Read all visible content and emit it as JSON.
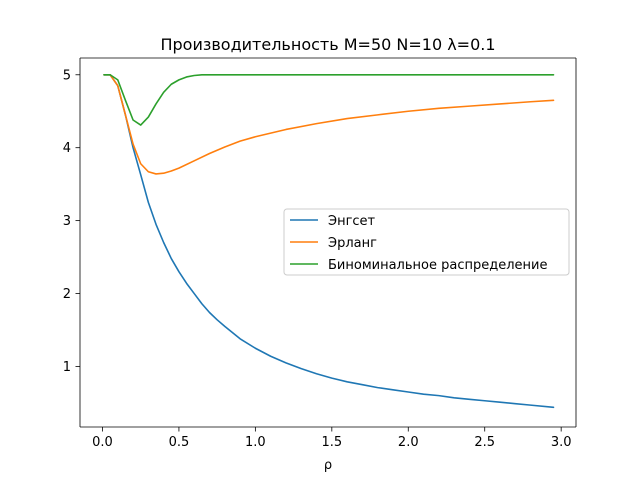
{
  "chart_data": {
    "type": "line",
    "title": "Производительность M=50 N=10 λ=0.1",
    "xlabel": "ρ",
    "ylabel": "",
    "xlim": [
      -0.147,
      3.097
    ],
    "ylim": [
      0.17,
      5.23
    ],
    "xticks": [
      0.0,
      0.5,
      1.0,
      1.5,
      2.0,
      2.5,
      3.0
    ],
    "xtick_labels": [
      "0.0",
      "0.5",
      "1.0",
      "1.5",
      "2.0",
      "2.5",
      "3.0"
    ],
    "yticks": [
      1,
      2,
      3,
      4,
      5
    ],
    "ytick_labels": [
      "1",
      "2",
      "3",
      "4",
      "5"
    ],
    "grid": false,
    "legend_position": "center-right",
    "series": [
      {
        "name": "Энгсет",
        "color": "#1f77b4",
        "x": [
          0.01,
          0.05,
          0.1,
          0.15,
          0.2,
          0.25,
          0.3,
          0.35,
          0.4,
          0.45,
          0.5,
          0.55,
          0.6,
          0.65,
          0.7,
          0.75,
          0.8,
          0.9,
          1.0,
          1.1,
          1.2,
          1.3,
          1.4,
          1.5,
          1.6,
          1.7,
          1.8,
          1.9,
          2.0,
          2.1,
          2.2,
          2.3,
          2.4,
          2.5,
          2.6,
          2.7,
          2.8,
          2.95
        ],
        "y": [
          5.0,
          5.0,
          4.85,
          4.45,
          4.0,
          3.63,
          3.25,
          2.95,
          2.7,
          2.48,
          2.3,
          2.14,
          2.0,
          1.86,
          1.74,
          1.64,
          1.55,
          1.38,
          1.25,
          1.14,
          1.05,
          0.97,
          0.9,
          0.84,
          0.79,
          0.75,
          0.71,
          0.68,
          0.65,
          0.62,
          0.6,
          0.57,
          0.55,
          0.53,
          0.51,
          0.49,
          0.47,
          0.44
        ]
      },
      {
        "name": "Эрланг",
        "color": "#ff7f0e",
        "x": [
          0.01,
          0.05,
          0.1,
          0.15,
          0.2,
          0.25,
          0.3,
          0.35,
          0.4,
          0.45,
          0.5,
          0.6,
          0.7,
          0.8,
          0.9,
          1.0,
          1.2,
          1.4,
          1.6,
          1.8,
          2.0,
          2.2,
          2.4,
          2.6,
          2.8,
          2.95
        ],
        "y": [
          5.0,
          5.0,
          4.85,
          4.45,
          4.05,
          3.78,
          3.67,
          3.64,
          3.65,
          3.68,
          3.72,
          3.82,
          3.92,
          4.01,
          4.09,
          4.15,
          4.25,
          4.33,
          4.4,
          4.45,
          4.5,
          4.54,
          4.57,
          4.6,
          4.63,
          4.65
        ]
      },
      {
        "name": "Биноминальное распределение",
        "color": "#2ca02c",
        "x": [
          0.01,
          0.05,
          0.1,
          0.15,
          0.2,
          0.25,
          0.3,
          0.35,
          0.4,
          0.45,
          0.5,
          0.55,
          0.6,
          0.65,
          0.7,
          0.8,
          1.0,
          1.5,
          2.0,
          2.5,
          2.95
        ],
        "y": [
          5.0,
          5.0,
          4.93,
          4.65,
          4.38,
          4.31,
          4.42,
          4.6,
          4.76,
          4.87,
          4.93,
          4.97,
          4.99,
          5.0,
          5.0,
          5.0,
          5.0,
          5.0,
          5.0,
          5.0,
          5.0
        ]
      }
    ]
  }
}
